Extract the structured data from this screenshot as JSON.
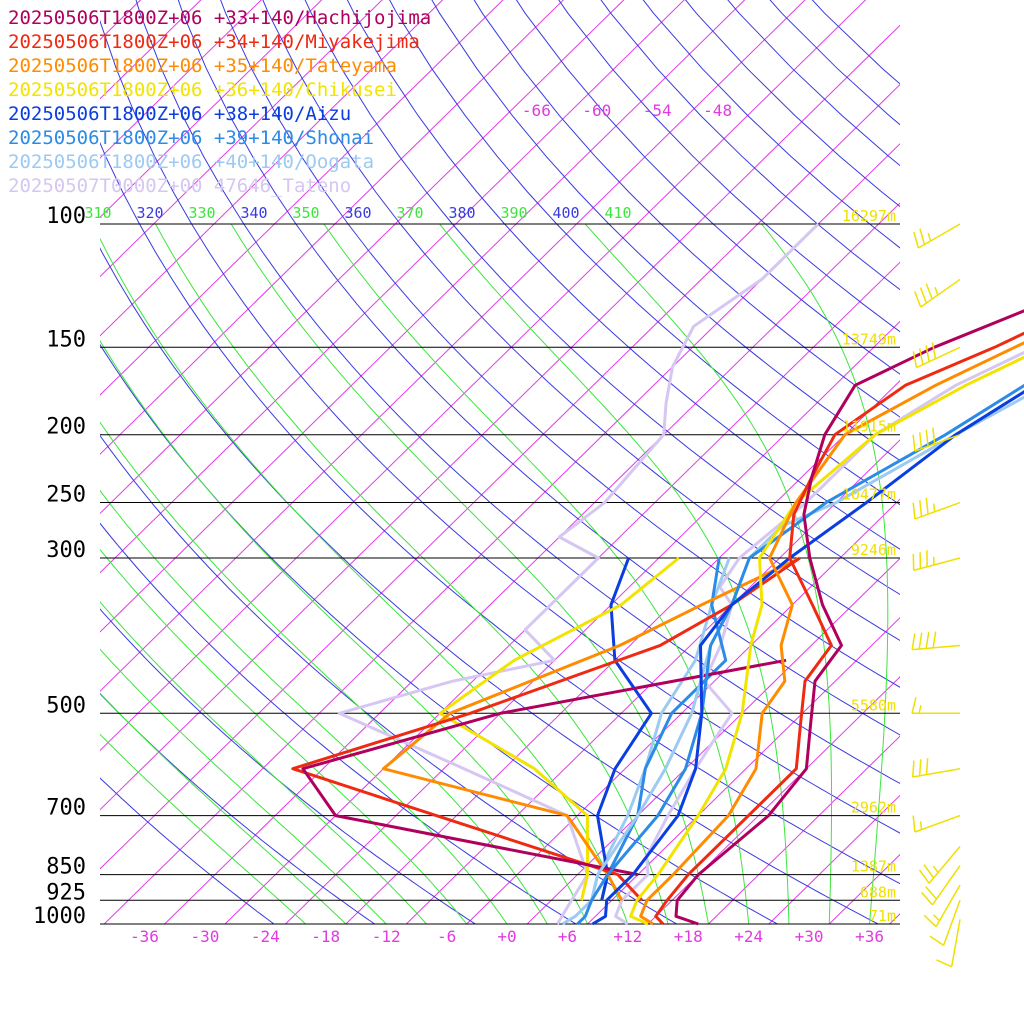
{
  "legend": [
    {
      "label": "20250506T1800Z+06 +33+140/Hachijojima",
      "color": "#b0005e"
    },
    {
      "label": "20250506T1800Z+06 +34+140/Miyakejima",
      "color": "#ee2a12"
    },
    {
      "label": "20250506T1800Z+06 +35+140/Tateyama",
      "color": "#ff8c00"
    },
    {
      "label": "20250506T1800Z+06 +36+140/Chikusei",
      "color": "#f2e400"
    },
    {
      "label": "20250506T1800Z+06 +38+140/Aizu",
      "color": "#0a3ee0"
    },
    {
      "label": "20250506T1800Z+06 +39+140/Shonai",
      "color": "#2b8be6"
    },
    {
      "label": "20250506T1800Z+06 +40+140/Oogata",
      "color": "#9ccaf2"
    },
    {
      "label": "20250507T0000Z+00 47646_Tateno",
      "color": "#d6c6f2"
    }
  ],
  "colors": {
    "isotherm": "#e23ce6",
    "dry_adiabat": "#3a3ae0",
    "moist_adiabat": "#3ce63c",
    "isobar": "#000000",
    "height_label": "#f0e000",
    "temp_label": "#e03ce0",
    "barb": "#f0e000"
  },
  "chart_data": {
    "type": "line",
    "title": "",
    "xlabel": "",
    "ylabel": "",
    "x_ticks": [
      "-36",
      "-30",
      "-24",
      "-18",
      "-12",
      "-6",
      "+0",
      "+6",
      "+12",
      "+18",
      "+24",
      "+30",
      "+36"
    ],
    "x_tick_values": [
      -36,
      -30,
      -24,
      -18,
      -12,
      -6,
      0,
      6,
      12,
      18,
      24,
      30,
      36
    ],
    "xlim": [
      -40,
      40
    ],
    "pressure_levels": [
      {
        "p": 100,
        "label": "100",
        "height": "16297m"
      },
      {
        "p": 150,
        "label": "150",
        "height": "13749m"
      },
      {
        "p": 200,
        "label": "200",
        "height": "11915m"
      },
      {
        "p": 250,
        "label": "250",
        "height": "10477m"
      },
      {
        "p": 300,
        "label": "300",
        "height": "9246m"
      },
      {
        "p": 500,
        "label": "500",
        "height": "5580m"
      },
      {
        "p": 700,
        "label": "700",
        "height": "2962m"
      },
      {
        "p": 850,
        "label": "850",
        "height": "1387m"
      },
      {
        "p": 925,
        "label": "925",
        "height": "688m"
      },
      {
        "p": 1000,
        "label": "1000",
        "height": "71m"
      }
    ],
    "ylim": [
      1000,
      100
    ],
    "upper_isotherm_labels": [
      "-66",
      "-60",
      "-54",
      "-48"
    ],
    "upper_isotherm_values": [
      -66,
      -60,
      -54,
      -48
    ],
    "theta_labels": [
      "310",
      "320",
      "330",
      "340",
      "350",
      "360",
      "370",
      "380",
      "390",
      "400",
      "410"
    ],
    "series": [
      {
        "name": "20250506T1800Z+06 +33+140/Hachijojima",
        "color": "#b0005e",
        "points": [
          [
            1000,
            19
          ],
          [
            975,
            16
          ],
          [
            925,
            14.5
          ],
          [
            850,
            14
          ],
          [
            700,
            15
          ],
          [
            600,
            14
          ],
          [
            520,
            10
          ],
          [
            450,
            6
          ],
          [
            400,
            5
          ],
          [
            350,
            -1
          ],
          [
            300,
            -7
          ],
          [
            260,
            -12
          ],
          [
            230,
            -15
          ],
          [
            200,
            -18
          ],
          [
            170,
            -20
          ],
          [
            150,
            -16
          ],
          [
            125,
            -8
          ],
          [
            100,
            -2
          ],
          [
            90,
            1
          ],
          [
            80,
            10
          ],
          [
            70,
            17
          ],
          [
            60,
            24
          ]
        ]
      },
      {
        "name": "20250506T1800Z+06 +34+140/Miyakejima",
        "color": "#ee2a12",
        "points": [
          [
            1000,
            15.5
          ],
          [
            975,
            14
          ],
          [
            925,
            13.5
          ],
          [
            850,
            13
          ],
          [
            700,
            13
          ],
          [
            600,
            13
          ],
          [
            520,
            9
          ],
          [
            450,
            5
          ],
          [
            400,
            4
          ],
          [
            350,
            -2
          ],
          [
            300,
            -9
          ],
          [
            260,
            -13
          ],
          [
            230,
            -15
          ],
          [
            200,
            -17
          ],
          [
            170,
            -15
          ],
          [
            150,
            -10
          ],
          [
            125,
            -4
          ],
          [
            100,
            0
          ],
          [
            80,
            12
          ],
          [
            70,
            17
          ],
          [
            60,
            25
          ]
        ]
      },
      {
        "name": "20250506T1800Z+06 +35+140/Tateyama",
        "color": "#ff8c00",
        "points": [
          [
            1000,
            14.5
          ],
          [
            975,
            12.5
          ],
          [
            925,
            11.5
          ],
          [
            850,
            11.5
          ],
          [
            700,
            11
          ],
          [
            600,
            9
          ],
          [
            500,
            4
          ],
          [
            450,
            3
          ],
          [
            400,
            -1
          ],
          [
            350,
            -4
          ],
          [
            300,
            -11
          ],
          [
            250,
            -14
          ],
          [
            200,
            -16
          ],
          [
            170,
            -12
          ],
          [
            150,
            -8
          ],
          [
            125,
            -2
          ],
          [
            100,
            4
          ],
          [
            80,
            13
          ],
          [
            70,
            19
          ],
          [
            60,
            26
          ]
        ]
      },
      {
        "name": "20250506T1800Z+06 +36+140/Chikusei",
        "color": "#f2e400",
        "points": [
          [
            1000,
            14
          ],
          [
            975,
            11.5
          ],
          [
            925,
            10.5
          ],
          [
            850,
            10
          ],
          [
            700,
            8
          ],
          [
            600,
            6
          ],
          [
            500,
            2
          ],
          [
            400,
            -4
          ],
          [
            350,
            -7
          ],
          [
            300,
            -12
          ],
          [
            250,
            -14
          ],
          [
            200,
            -13
          ],
          [
            170,
            -9
          ],
          [
            150,
            -5
          ],
          [
            125,
            0
          ],
          [
            100,
            6
          ],
          [
            80,
            15
          ],
          [
            70,
            21
          ],
          [
            60,
            27
          ]
        ]
      },
      {
        "name": "20250506T1800Z+06 +38+140/Aizu",
        "color": "#0a3ee0",
        "points": [
          [
            1000,
            8.5
          ],
          [
            975,
            9
          ],
          [
            925,
            7.5
          ],
          [
            850,
            7.5
          ],
          [
            700,
            6
          ],
          [
            600,
            3
          ],
          [
            500,
            -2
          ],
          [
            400,
            -9
          ],
          [
            350,
            -10
          ],
          [
            300,
            -9
          ],
          [
            250,
            -7
          ],
          [
            200,
            -5
          ],
          [
            150,
            0
          ],
          [
            125,
            4
          ],
          [
            100,
            11
          ],
          [
            80,
            19
          ],
          [
            70,
            24
          ],
          [
            60,
            29
          ]
        ]
      },
      {
        "name": "20250506T1800Z+06 +39+140/Shonai",
        "color": "#2b8be6",
        "points": [
          [
            1000,
            7
          ],
          [
            975,
            7
          ],
          [
            925,
            6
          ],
          [
            850,
            5
          ],
          [
            700,
            4
          ],
          [
            600,
            2
          ],
          [
            500,
            -2
          ],
          [
            400,
            -8
          ],
          [
            350,
            -10
          ],
          [
            300,
            -13
          ],
          [
            250,
            -11
          ],
          [
            200,
            -6
          ],
          [
            150,
            -1
          ],
          [
            125,
            4
          ],
          [
            100,
            10
          ],
          [
            80,
            19
          ],
          [
            70,
            25
          ],
          [
            60,
            30
          ]
        ]
      },
      {
        "name": "20250506T1800Z+06 +40+140/Oogata",
        "color": "#9ccaf2",
        "points": [
          [
            1000,
            5.5
          ],
          [
            975,
            6
          ],
          [
            925,
            6
          ],
          [
            850,
            4
          ],
          [
            700,
            2
          ],
          [
            600,
            0
          ],
          [
            500,
            -3
          ],
          [
            400,
            -8
          ],
          [
            350,
            -10
          ],
          [
            300,
            -13
          ],
          [
            270,
            -13
          ],
          [
            250,
            -10
          ],
          [
            200,
            -5
          ],
          [
            150,
            2
          ],
          [
            125,
            7
          ],
          [
            100,
            14
          ],
          [
            80,
            22
          ],
          [
            70,
            27
          ],
          [
            60,
            31
          ]
        ]
      }
    ],
    "dewpoint_series": [
      {
        "name": "20250506T1800Z+06 +33+140/Hachijojima",
        "color": "#b0005e",
        "points": [
          [
            850,
            8
          ],
          [
            700,
            -28
          ],
          [
            600,
            -36
          ],
          [
            500,
            -22
          ],
          [
            420,
            1
          ]
        ]
      },
      {
        "name": "20250506T1800Z+06 +34+140/Miyakejima",
        "color": "#ee2a12",
        "points": [
          [
            925,
            11
          ],
          [
            850,
            6
          ],
          [
            700,
            -18
          ],
          [
            600,
            -37
          ],
          [
            500,
            -25
          ],
          [
            400,
            -13
          ],
          [
            350,
            -10
          ],
          [
            300,
            -8
          ]
        ]
      },
      {
        "name": "20250506T1800Z+06 +35+140/Tateyama",
        "color": "#ff8c00",
        "points": [
          [
            925,
            9
          ],
          [
            850,
            5
          ],
          [
            700,
            -5
          ],
          [
            600,
            -28
          ],
          [
            500,
            -27
          ],
          [
            400,
            -17
          ],
          [
            350,
            -13
          ],
          [
            300,
            -8
          ]
        ]
      },
      {
        "name": "20250506T1800Z+06 +36+140/Chikusei",
        "color": "#f2e400",
        "points": [
          [
            925,
            5
          ],
          [
            850,
            3
          ],
          [
            700,
            -3
          ],
          [
            600,
            -13
          ],
          [
            500,
            -28
          ],
          [
            420,
            -26
          ],
          [
            350,
            -21
          ],
          [
            300,
            -20
          ]
        ]
      },
      {
        "name": "20250506T1800Z+06 +38+140/Aizu",
        "color": "#0a3ee0",
        "points": [
          [
            925,
            7
          ],
          [
            850,
            5
          ],
          [
            700,
            -2
          ],
          [
            600,
            -5
          ],
          [
            500,
            -7
          ],
          [
            420,
            -16
          ],
          [
            350,
            -22
          ],
          [
            300,
            -25
          ]
        ]
      },
      {
        "name": "20250506T1800Z+06 +39+140/Shonai",
        "color": "#2b8be6",
        "points": [
          [
            925,
            7
          ],
          [
            850,
            5
          ],
          [
            700,
            2
          ],
          [
            600,
            -2
          ],
          [
            500,
            -5
          ],
          [
            420,
            -5
          ],
          [
            350,
            -12
          ],
          [
            300,
            -16
          ]
        ]
      },
      {
        "name": "20250506T1800Z+06 +40+140/Oogata",
        "color": "#9ccaf2",
        "points": [
          [
            925,
            6
          ],
          [
            850,
            4
          ],
          [
            700,
            1
          ],
          [
            600,
            -2
          ],
          [
            500,
            -6
          ],
          [
            420,
            -8
          ],
          [
            350,
            -12
          ],
          [
            300,
            -15
          ]
        ]
      }
    ],
    "observed_series": {
      "name": "20250507T0000Z+00 47646_Tateno",
      "color": "#d6c6f2",
      "temperature": [
        [
          1000,
          12
        ],
        [
          975,
          10
        ],
        [
          925,
          9
        ],
        [
          850,
          9
        ],
        [
          800,
          7
        ],
        [
          700,
          5
        ],
        [
          600,
          3
        ],
        [
          550,
          2
        ],
        [
          500,
          1
        ],
        [
          450,
          -5
        ],
        [
          400,
          -7
        ],
        [
          350,
          -10
        ],
        [
          330,
          -13
        ],
        [
          300,
          -14
        ],
        [
          250,
          -13
        ],
        [
          200,
          -13
        ],
        [
          170,
          -10
        ],
        [
          150,
          -6
        ],
        [
          130,
          -2
        ],
        [
          115,
          -2
        ],
        [
          100,
          -2
        ]
      ],
      "dewpoint": [
        [
          1000,
          5
        ],
        [
          925,
          4
        ],
        [
          850,
          3
        ],
        [
          700,
          -5
        ],
        [
          600,
          -20
        ],
        [
          500,
          -38
        ],
        [
          450,
          -30
        ],
        [
          420,
          -22
        ],
        [
          380,
          -28
        ],
        [
          300,
          -28
        ],
        [
          280,
          -34
        ],
        [
          250,
          -33
        ],
        [
          200,
          -34
        ],
        [
          180,
          -37
        ],
        [
          160,
          -40
        ],
        [
          140,
          -42
        ],
        [
          120,
          -40
        ],
        [
          100,
          -40
        ]
      ]
    },
    "wind_barbs": [
      {
        "p": 100,
        "speed_kt": 25,
        "direction_deg": 240
      },
      {
        "p": 120,
        "speed_kt": 35,
        "direction_deg": 235
      },
      {
        "p": 150,
        "speed_kt": 40,
        "direction_deg": 245
      },
      {
        "p": 200,
        "speed_kt": 40,
        "direction_deg": 250
      },
      {
        "p": 250,
        "speed_kt": 35,
        "direction_deg": 250
      },
      {
        "p": 300,
        "speed_kt": 35,
        "direction_deg": 255
      },
      {
        "p": 400,
        "speed_kt": 40,
        "direction_deg": 265
      },
      {
        "p": 500,
        "speed_kt": 15,
        "direction_deg": 270
      },
      {
        "p": 600,
        "speed_kt": 30,
        "direction_deg": 260
      },
      {
        "p": 700,
        "speed_kt": 15,
        "direction_deg": 250
      },
      {
        "p": 775,
        "speed_kt": 25,
        "direction_deg": 220
      },
      {
        "p": 825,
        "speed_kt": 20,
        "direction_deg": 215
      },
      {
        "p": 880,
        "speed_kt": 15,
        "direction_deg": 210
      },
      {
        "p": 925,
        "speed_kt": 10,
        "direction_deg": 200
      },
      {
        "p": 985,
        "speed_kt": 10,
        "direction_deg": 190
      }
    ]
  }
}
